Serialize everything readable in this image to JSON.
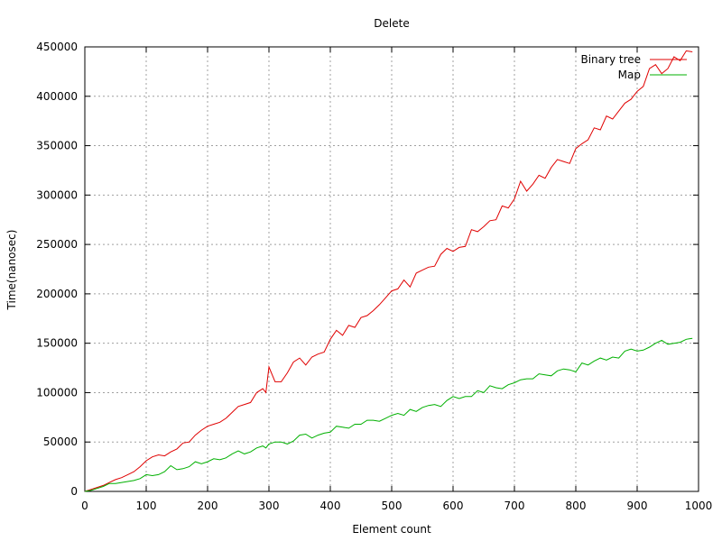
{
  "chart_data": {
    "type": "line",
    "title": "Delete",
    "xlabel": "Element count",
    "ylabel": "Time(nanosec)",
    "xlim": [
      0,
      1000
    ],
    "ylim": [
      0,
      450000
    ],
    "xticks": [
      0,
      100,
      200,
      300,
      400,
      500,
      600,
      700,
      800,
      900,
      1000
    ],
    "yticks": [
      0,
      50000,
      100000,
      150000,
      200000,
      250000,
      300000,
      350000,
      400000,
      450000
    ],
    "grid": true,
    "legend_position": "top-right",
    "series": [
      {
        "name": "Binary tree",
        "color": "#e00000",
        "points": [
          [
            0,
            0
          ],
          [
            10,
            2000
          ],
          [
            20,
            4000
          ],
          [
            30,
            6000
          ],
          [
            40,
            9000
          ],
          [
            50,
            12000
          ],
          [
            60,
            14000
          ],
          [
            70,
            17000
          ],
          [
            80,
            20000
          ],
          [
            90,
            25000
          ],
          [
            100,
            31000
          ],
          [
            110,
            35000
          ],
          [
            120,
            37000
          ],
          [
            130,
            36000
          ],
          [
            140,
            40000
          ],
          [
            150,
            43000
          ],
          [
            160,
            49000
          ],
          [
            170,
            50000
          ],
          [
            180,
            57000
          ],
          [
            190,
            62000
          ],
          [
            200,
            66000
          ],
          [
            210,
            68000
          ],
          [
            220,
            70000
          ],
          [
            230,
            74000
          ],
          [
            240,
            80000
          ],
          [
            250,
            86000
          ],
          [
            260,
            88000
          ],
          [
            270,
            90000
          ],
          [
            280,
            100000
          ],
          [
            290,
            104000
          ],
          [
            295,
            100000
          ],
          [
            300,
            126000
          ],
          [
            310,
            111000
          ],
          [
            320,
            111000
          ],
          [
            330,
            120000
          ],
          [
            340,
            131000
          ],
          [
            350,
            135000
          ],
          [
            360,
            128000
          ],
          [
            370,
            136000
          ],
          [
            380,
            139000
          ],
          [
            390,
            141000
          ],
          [
            400,
            154000
          ],
          [
            410,
            163000
          ],
          [
            420,
            158000
          ],
          [
            430,
            168000
          ],
          [
            440,
            166000
          ],
          [
            450,
            176000
          ],
          [
            460,
            178000
          ],
          [
            470,
            183000
          ],
          [
            480,
            189000
          ],
          [
            490,
            196000
          ],
          [
            500,
            203000
          ],
          [
            510,
            205000
          ],
          [
            520,
            214000
          ],
          [
            530,
            207000
          ],
          [
            540,
            221000
          ],
          [
            550,
            224000
          ],
          [
            560,
            227000
          ],
          [
            570,
            228000
          ],
          [
            580,
            240000
          ],
          [
            590,
            246000
          ],
          [
            600,
            243000
          ],
          [
            610,
            247000
          ],
          [
            620,
            248000
          ],
          [
            630,
            265000
          ],
          [
            640,
            263000
          ],
          [
            650,
            268000
          ],
          [
            660,
            274000
          ],
          [
            670,
            275000
          ],
          [
            680,
            289000
          ],
          [
            690,
            287000
          ],
          [
            700,
            296000
          ],
          [
            710,
            314000
          ],
          [
            720,
            304000
          ],
          [
            730,
            311000
          ],
          [
            740,
            320000
          ],
          [
            750,
            317000
          ],
          [
            760,
            328000
          ],
          [
            770,
            336000
          ],
          [
            780,
            334000
          ],
          [
            790,
            332000
          ],
          [
            800,
            347000
          ],
          [
            810,
            352000
          ],
          [
            820,
            356000
          ],
          [
            830,
            368000
          ],
          [
            840,
            366000
          ],
          [
            850,
            380000
          ],
          [
            860,
            377000
          ],
          [
            870,
            385000
          ],
          [
            880,
            393000
          ],
          [
            890,
            397000
          ],
          [
            900,
            405000
          ],
          [
            910,
            410000
          ],
          [
            920,
            428000
          ],
          [
            930,
            432000
          ],
          [
            940,
            423000
          ],
          [
            950,
            428000
          ],
          [
            960,
            440000
          ],
          [
            970,
            436000
          ],
          [
            980,
            446000
          ],
          [
            990,
            445000
          ]
        ]
      },
      {
        "name": "Map",
        "color": "#00b000",
        "points": [
          [
            0,
            0
          ],
          [
            10,
            1000
          ],
          [
            20,
            3000
          ],
          [
            30,
            5000
          ],
          [
            40,
            8000
          ],
          [
            50,
            8000
          ],
          [
            60,
            9000
          ],
          [
            70,
            10000
          ],
          [
            80,
            11000
          ],
          [
            90,
            13000
          ],
          [
            100,
            17000
          ],
          [
            110,
            16000
          ],
          [
            120,
            17000
          ],
          [
            130,
            20000
          ],
          [
            140,
            26000
          ],
          [
            150,
            22000
          ],
          [
            160,
            23000
          ],
          [
            170,
            25000
          ],
          [
            180,
            30000
          ],
          [
            190,
            28000
          ],
          [
            200,
            30000
          ],
          [
            210,
            33000
          ],
          [
            220,
            32000
          ],
          [
            230,
            34000
          ],
          [
            240,
            38000
          ],
          [
            250,
            41000
          ],
          [
            260,
            38000
          ],
          [
            270,
            40000
          ],
          [
            280,
            44000
          ],
          [
            290,
            46000
          ],
          [
            295,
            44000
          ],
          [
            300,
            48000
          ],
          [
            310,
            50000
          ],
          [
            320,
            50000
          ],
          [
            330,
            48000
          ],
          [
            340,
            51000
          ],
          [
            350,
            57000
          ],
          [
            360,
            58000
          ],
          [
            370,
            54000
          ],
          [
            380,
            57000
          ],
          [
            390,
            59000
          ],
          [
            400,
            60000
          ],
          [
            410,
            66000
          ],
          [
            420,
            65000
          ],
          [
            430,
            64000
          ],
          [
            440,
            68000
          ],
          [
            450,
            68000
          ],
          [
            460,
            72000
          ],
          [
            470,
            72000
          ],
          [
            480,
            71000
          ],
          [
            490,
            74000
          ],
          [
            500,
            77000
          ],
          [
            510,
            79000
          ],
          [
            520,
            77000
          ],
          [
            530,
            83000
          ],
          [
            540,
            81000
          ],
          [
            550,
            85000
          ],
          [
            560,
            87000
          ],
          [
            570,
            88000
          ],
          [
            580,
            86000
          ],
          [
            590,
            92000
          ],
          [
            600,
            96000
          ],
          [
            610,
            94000
          ],
          [
            620,
            96000
          ],
          [
            630,
            96000
          ],
          [
            640,
            102000
          ],
          [
            650,
            100000
          ],
          [
            660,
            107000
          ],
          [
            670,
            105000
          ],
          [
            680,
            104000
          ],
          [
            690,
            108000
          ],
          [
            700,
            110000
          ],
          [
            710,
            113000
          ],
          [
            720,
            114000
          ],
          [
            730,
            114000
          ],
          [
            740,
            119000
          ],
          [
            750,
            118000
          ],
          [
            760,
            117000
          ],
          [
            770,
            122000
          ],
          [
            780,
            124000
          ],
          [
            790,
            123000
          ],
          [
            800,
            121000
          ],
          [
            810,
            130000
          ],
          [
            820,
            128000
          ],
          [
            830,
            132000
          ],
          [
            840,
            135000
          ],
          [
            850,
            133000
          ],
          [
            860,
            136000
          ],
          [
            870,
            135000
          ],
          [
            880,
            142000
          ],
          [
            890,
            144000
          ],
          [
            900,
            142000
          ],
          [
            910,
            143000
          ],
          [
            920,
            146000
          ],
          [
            930,
            150000
          ],
          [
            940,
            153000
          ],
          [
            950,
            149000
          ],
          [
            960,
            150000
          ],
          [
            970,
            151000
          ],
          [
            980,
            154000
          ],
          [
            990,
            155000
          ]
        ]
      }
    ]
  }
}
